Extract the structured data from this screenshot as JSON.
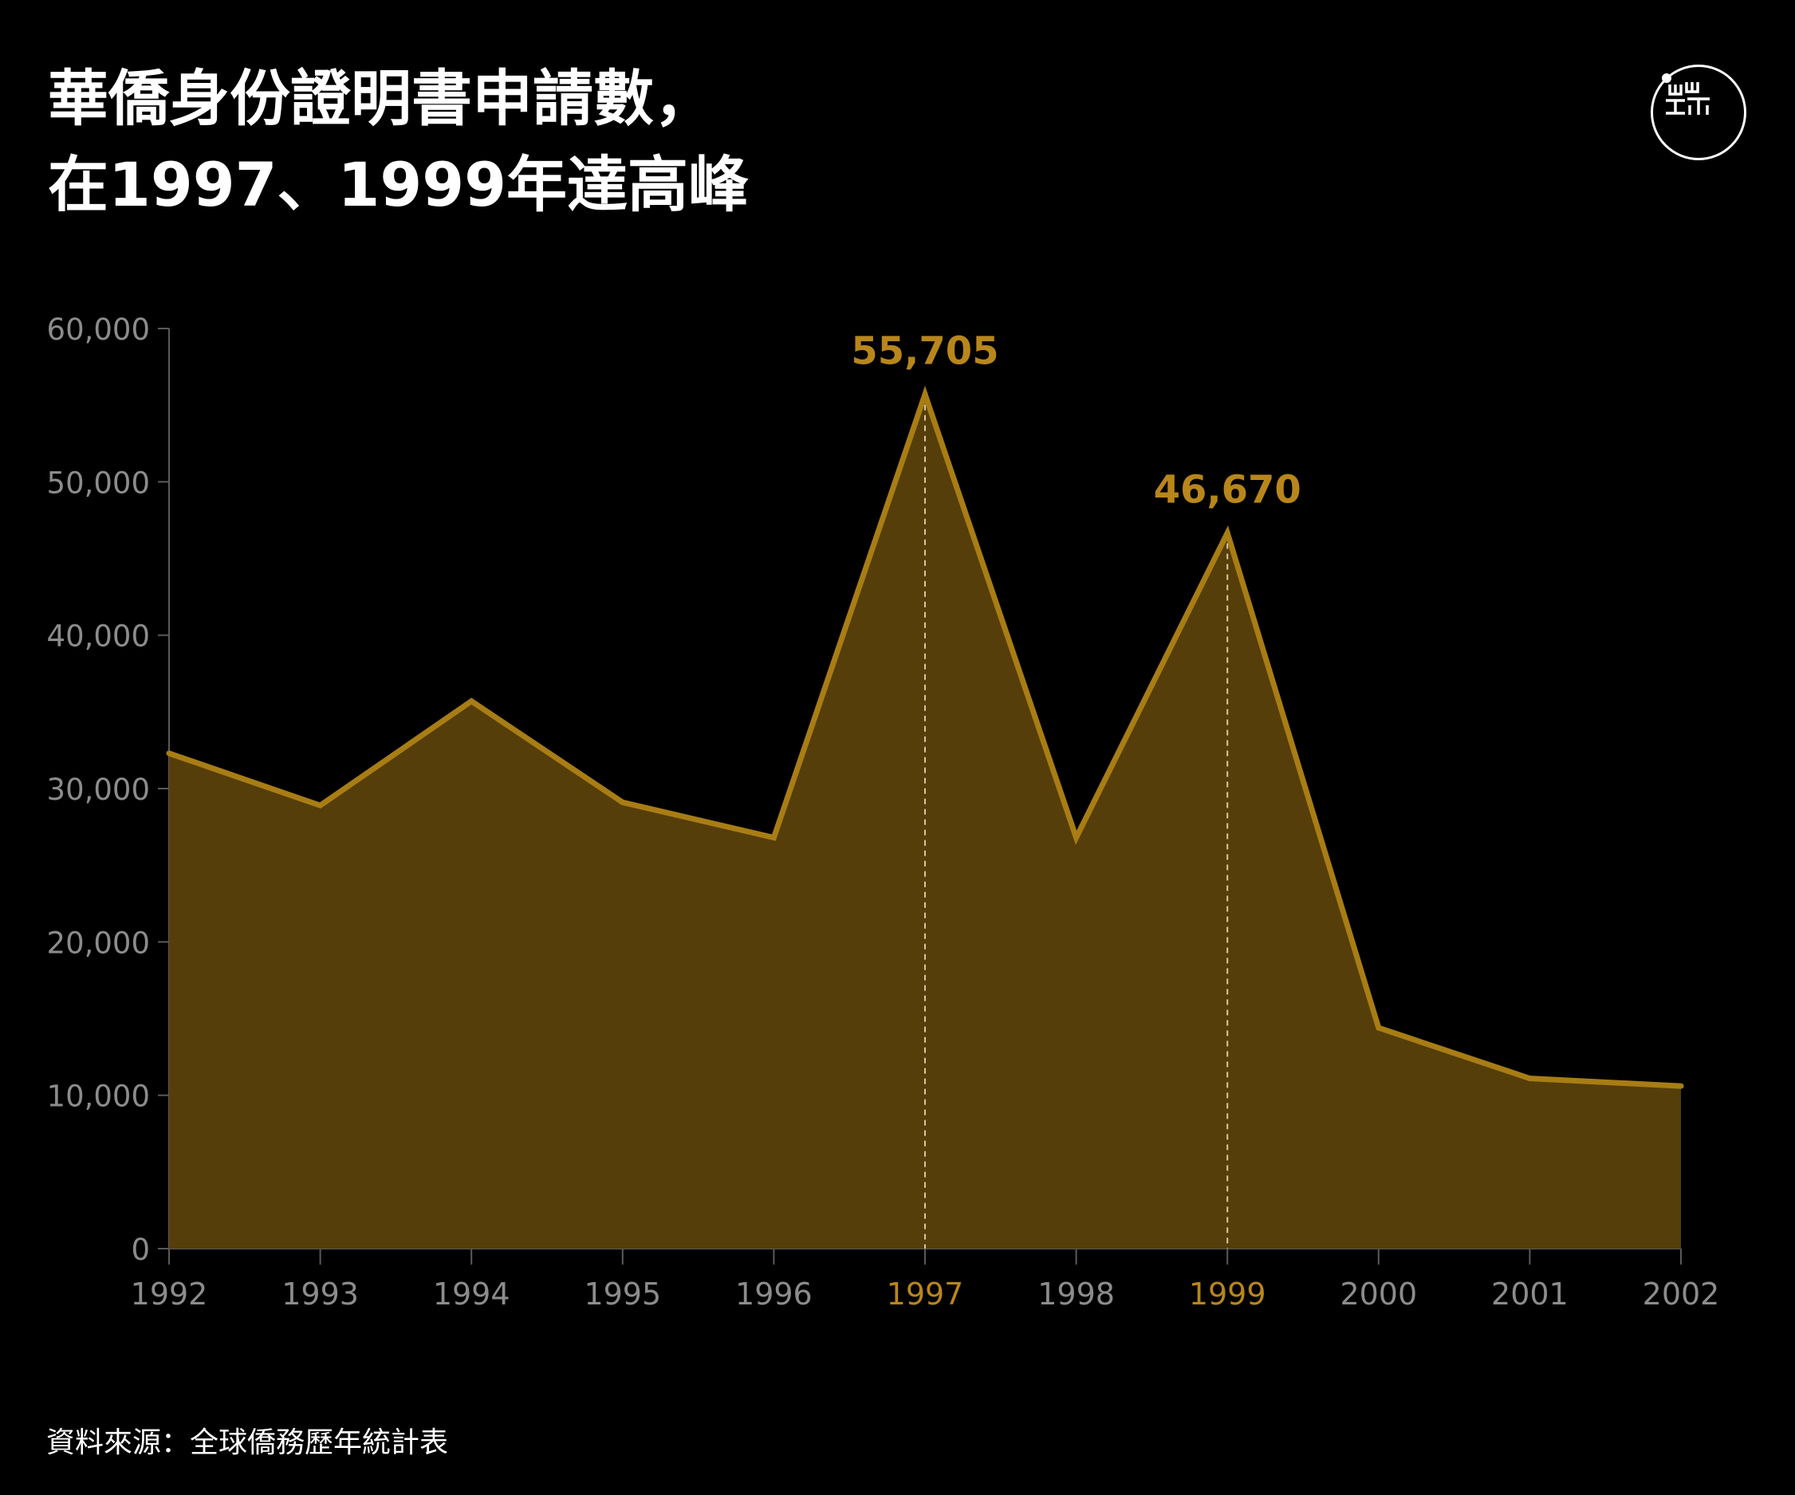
{
  "title": {
    "line1": "華僑身份證明書申請數，",
    "line2": "在1997、1999年達高峰"
  },
  "logo": {
    "icon": "initium-media-logo"
  },
  "source": "資料來源：全球僑務歷年統計表",
  "colors": {
    "background": "#000000",
    "line": "#a87d14",
    "area": "#563e0a",
    "highlight": "#b8861b",
    "tick_label": "#8c8c8c",
    "axis": "#5a5a5a"
  },
  "chart_data": {
    "type": "area",
    "title": "華僑身份證明書申請數，在1997、1999年達高峰",
    "xlabel": "",
    "ylabel": "",
    "x": [
      "1992",
      "1993",
      "1994",
      "1995",
      "1996",
      "1997",
      "1998",
      "1999",
      "2000",
      "2001",
      "2002"
    ],
    "values": [
      32300,
      28900,
      35700,
      29100,
      26800,
      55705,
      26800,
      46670,
      14400,
      11100,
      10600
    ],
    "ylim": [
      0,
      60000
    ],
    "yticks": [
      0,
      10000,
      20000,
      30000,
      40000,
      50000,
      60000
    ],
    "ytick_labels": [
      "0",
      "10,000",
      "20,000",
      "30,000",
      "40,000",
      "50,000",
      "60,000"
    ],
    "highlighted_x": [
      "1997",
      "1999"
    ],
    "annotations": [
      {
        "x": "1997",
        "value": 55705,
        "label": "55,705"
      },
      {
        "x": "1999",
        "value": 46670,
        "label": "46,670"
      }
    ],
    "grid": false,
    "legend": "none"
  }
}
